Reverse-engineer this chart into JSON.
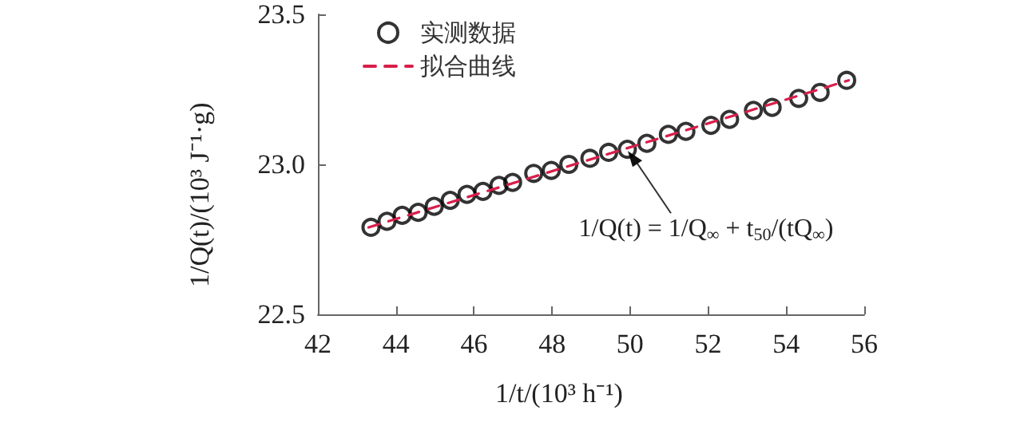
{
  "chart_data": {
    "type": "scatter",
    "xlabel": "1/t/(10³ h⁻¹)",
    "ylabel": "1/Q(t)/(10³ J⁻¹·g)",
    "xlim": [
      42,
      56
    ],
    "xticks": [
      42,
      44,
      46,
      48,
      50,
      52,
      54,
      56
    ],
    "ylim": [
      22.5,
      23.5
    ],
    "yticks": [
      22.5,
      {
        "value": 23,
        "label": "23.0"
      },
      23.5
    ],
    "grid": false,
    "legend": "top left",
    "marker": "circle",
    "series": [
      {
        "name": "实测数据",
        "color": "#000000",
        "x": [
          43.36,
          43.77,
          44.16,
          44.57,
          44.98,
          45.39,
          45.82,
          46.23,
          46.64,
          46.99,
          47.53,
          47.98,
          48.43,
          48.97,
          49.45,
          49.93,
          50.43,
          50.98,
          51.43,
          52.07,
          52.55,
          53.16,
          53.64,
          54.32,
          54.87,
          55.55
        ],
        "values": [
          22.79,
          22.81,
          22.83,
          22.84,
          22.86,
          22.88,
          22.9,
          22.91,
          22.93,
          22.94,
          22.97,
          22.98,
          23.0,
          23.02,
          23.04,
          23.05,
          23.07,
          23.1,
          23.11,
          23.13,
          23.15,
          23.18,
          23.19,
          23.22,
          23.24,
          23.28
        ]
      },
      {
        "name": "拟合曲线",
        "type": "line",
        "line_style": "dashed",
        "marker": "none",
        "color": "#d81e4a",
        "x": [
          43.3,
          55.6
        ],
        "values": [
          22.79,
          23.28
        ]
      }
    ],
    "annotations": [
      {
        "text": "1/Q(t) = 1/Q$_{∞}$ + t$_{50}$/(tQ$_{∞}$)",
        "x": 49.9,
        "y": 23.05
      }
    ]
  }
}
